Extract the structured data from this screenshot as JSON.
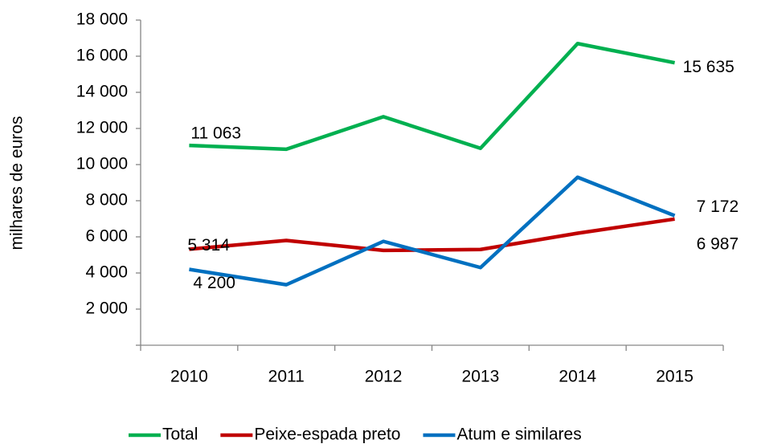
{
  "chart_data": {
    "type": "line",
    "y_label": "milhares de euros",
    "categories": [
      "2010",
      "2011",
      "2012",
      "2013",
      "2014",
      "2015"
    ],
    "series": [
      {
        "name": "Total",
        "color": "#00b050",
        "values": [
          11063,
          10850,
          12650,
          10900,
          16700,
          15635
        ],
        "value_labels": [
          "11 063",
          null,
          null,
          null,
          null,
          "15 635"
        ]
      },
      {
        "name": "Peixe-espada preto",
        "color": "#c00000",
        "values": [
          5314,
          5800,
          5250,
          5300,
          6200,
          6987
        ],
        "value_labels": [
          "5 314",
          null,
          null,
          null,
          null,
          "6 987"
        ]
      },
      {
        "name": "Atum e similares",
        "color": "#0070c0",
        "values": [
          4200,
          3350,
          5750,
          4300,
          9300,
          7172
        ],
        "value_labels": [
          "4 200",
          null,
          null,
          null,
          null,
          "7 172"
        ]
      }
    ],
    "ylim": [
      0,
      18000
    ],
    "yticks": [
      {
        "value": 2000,
        "label": "2 000"
      },
      {
        "value": 4000,
        "label": "4 000"
      },
      {
        "value": 6000,
        "label": "6 000"
      },
      {
        "value": 8000,
        "label": "8 000"
      },
      {
        "value": 10000,
        "label": "10 000"
      },
      {
        "value": 12000,
        "label": "12 000"
      },
      {
        "value": 14000,
        "label": "14 000"
      },
      {
        "value": 16000,
        "label": "16 000"
      },
      {
        "value": 18000,
        "label": "18 000"
      }
    ],
    "grid": false,
    "legend": "bottom"
  }
}
